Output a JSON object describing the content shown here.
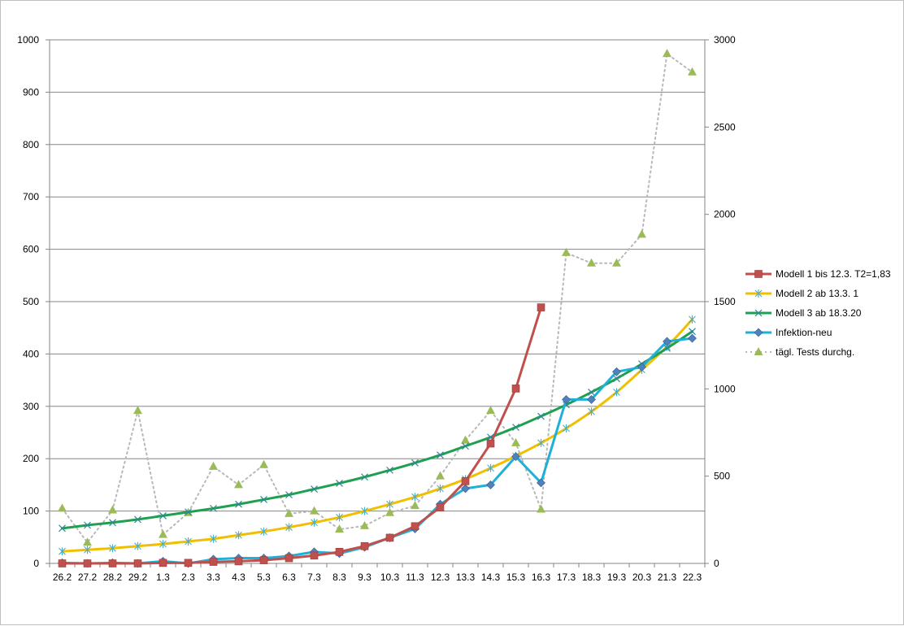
{
  "chart_data": {
    "type": "line",
    "categories": [
      "26.2",
      "27.2",
      "28.2",
      "29.2",
      "1.3",
      "2.3",
      "3.3",
      "4.3",
      "5.3",
      "6.3",
      "7.3",
      "8.3",
      "9.3",
      "10.3",
      "11.3",
      "12.3",
      "13.3",
      "14.3",
      "15.3",
      "16.3",
      "17.3",
      "18.3",
      "19.3",
      "20.3",
      "21.3",
      "22.3"
    ],
    "y_left": {
      "min": 0,
      "max": 1000,
      "ticks": [
        0,
        100,
        200,
        300,
        400,
        500,
        600,
        700,
        800,
        900,
        1000
      ]
    },
    "y_right": {
      "min": 0,
      "max": 3000,
      "ticks": [
        0,
        500,
        1000,
        1500,
        2000,
        2500,
        3000
      ]
    },
    "grid": "horizontal",
    "legend_position": "right",
    "series": [
      {
        "name": "Modell 1 bis 12.3. T2=1,83",
        "axis": "left",
        "color": "#c0504d",
        "marker": "square",
        "line": "solid",
        "smooth": false,
        "values": [
          0,
          0,
          0,
          0,
          1,
          1,
          3,
          4,
          6,
          10,
          15,
          22,
          33,
          49,
          71,
          107,
          157,
          229,
          334,
          489,
          null,
          null,
          null,
          null,
          null,
          null
        ]
      },
      {
        "name": "Modell 2 ab 13.3. 1",
        "axis": "left",
        "color": "#f0c000",
        "marker": "asterisk",
        "markerColor": "#4bacc6",
        "line": "solid",
        "smooth": true,
        "values": [
          23,
          26,
          29,
          33,
          37,
          42,
          47,
          54,
          61,
          69,
          78,
          88,
          100,
          113,
          127,
          143,
          161,
          182,
          205,
          230,
          258,
          290,
          327,
          370,
          414,
          466
        ]
      },
      {
        "name": "Modell 3 ab 18.3.20",
        "axis": "left",
        "color": "#1fa050",
        "marker": "x",
        "markerColor": "#31859c",
        "line": "solid",
        "smooth": true,
        "values": [
          67,
          73,
          78,
          84,
          91,
          98,
          105,
          113,
          122,
          131,
          142,
          153,
          165,
          178,
          192,
          207,
          224,
          241,
          260,
          281,
          303,
          327,
          353,
          381,
          411,
          443
        ]
      },
      {
        "name": "Infektion-neu",
        "axis": "left",
        "color": "#1fb0d8",
        "marker": "diamond",
        "markerColor": "#4f81bd",
        "line": "solid",
        "smooth": false,
        "values": [
          1,
          0,
          1,
          0,
          4,
          0,
          8,
          10,
          10,
          14,
          22,
          19,
          31,
          49,
          66,
          113,
          143,
          150,
          204,
          154,
          313,
          313,
          366,
          375,
          424,
          430
        ]
      },
      {
        "name": "tägl. Tests durchg.",
        "axis": "right",
        "color": "#b8b8b8",
        "marker": "triangle",
        "markerColor": "#9bbb59",
        "line": "dotted",
        "smooth": false,
        "values": [
          315,
          120,
          305,
          875,
          165,
          290,
          555,
          450,
          565,
          285,
          300,
          195,
          215,
          290,
          330,
          500,
          705,
          875,
          690,
          310,
          1780,
          1720,
          1720,
          1885,
          2920,
          2815
        ]
      }
    ]
  }
}
